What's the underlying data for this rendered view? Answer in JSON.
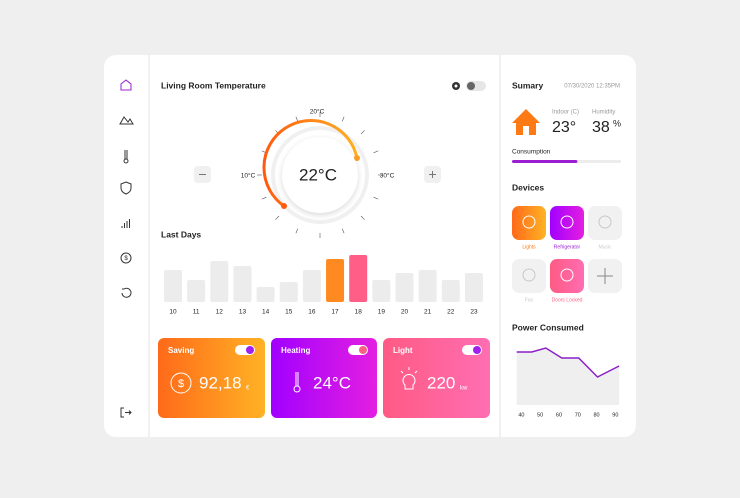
{
  "temperature": {
    "title": "Living Room Temperature",
    "min_label": "10°C",
    "mid_label": "20°C",
    "max_label": "30°C",
    "current": "22°C"
  },
  "last_days": {
    "title": "Last Days",
    "categories": [
      "10",
      "11",
      "12",
      "13",
      "14",
      "15",
      "16",
      "17",
      "18",
      "19",
      "20",
      "21",
      "22",
      "23"
    ],
    "values": [
      32,
      22,
      41,
      36,
      15,
      20,
      32,
      43,
      47,
      22,
      29,
      32,
      22,
      29
    ],
    "highlight": {
      "7": "#ff8a22",
      "8": "#ff5f86"
    },
    "color": "#ececec"
  },
  "cards": [
    {
      "title": "Saving",
      "value": "92,18",
      "unit": "€"
    },
    {
      "title": "Heating",
      "value": "24°C"
    },
    {
      "title": "Light",
      "value": "220",
      "unit": "kw"
    }
  ],
  "summary": {
    "title": "Sumary",
    "datetime": "07/30/2020 12:35PM",
    "indoor_label": "Indoor (C)",
    "indoor_value": "23°",
    "humidity_label": "Humidity",
    "humidity_value": "38",
    "humidity_unit": "%",
    "consumption_label": "Consumption",
    "consumption_percent": 60
  },
  "devices": {
    "title": "Devices",
    "items": [
      {
        "label": "Lights",
        "state": "on"
      },
      {
        "label": "Refrigerator",
        "state": "on"
      },
      {
        "label": "Music",
        "state": "off"
      },
      {
        "label": "Fan",
        "state": "off"
      },
      {
        "label": "Doors Locked",
        "state": "on"
      }
    ]
  },
  "power": {
    "title": "Power Consumed",
    "xticks": [
      40,
      50,
      60,
      70,
      80,
      90
    ],
    "x": [
      37.5,
      45.5,
      53,
      61.5,
      70.5,
      80.5,
      92
    ],
    "values": [
      53,
      53,
      57,
      47,
      47,
      28,
      39
    ],
    "xlim": [
      35,
      93
    ],
    "ylim": [
      0,
      60
    ],
    "color": "#8a1fc9"
  }
}
